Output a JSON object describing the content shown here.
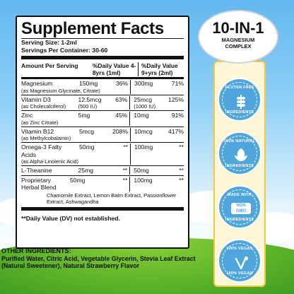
{
  "facts": {
    "title": "Supplement Facts",
    "serving_size": "Serving Size: 1-2ml",
    "servings_per_container": "Servings Per Container: 30-60",
    "headers": {
      "amount": "Amount Per Serving",
      "dv_kids": "%Daily Value 4-8yrs (1ml)",
      "dv_adult": "%Daily Value 9+yrs (2ml)"
    },
    "rows": [
      {
        "name": "Magnesium",
        "sub": "(as Magnesium Glycinate, Citrate)",
        "amt1": "150mg",
        "pct1": "36%",
        "amt2": "300mg",
        "pct2": "71%"
      },
      {
        "name": "Vitamin D3",
        "sub": "(as Cholecalciferol)",
        "amt1": "12.5mcg",
        "amt1_sub": "(500 IU)",
        "pct1": "63%",
        "amt2": "25mcg",
        "amt2_sub": "(1000 IU)",
        "pct2": "125%"
      },
      {
        "name": "Zinc",
        "sub": "(as Zinc Citrate)",
        "amt1": "5mg",
        "pct1": "45%",
        "amt2": "10mg",
        "pct2": "91%"
      },
      {
        "name": "Vitamin B12",
        "sub": "(as Methylcobalamin)",
        "amt1": "5mcg",
        "pct1": "208%",
        "amt2": "10mcg",
        "pct2": "417%"
      },
      {
        "name": "Omega-3 Fatty Acids",
        "sub": "(as Alpha-Linolenic Acid)",
        "amt1": "50mg",
        "pct1": "**",
        "amt2": "100mg",
        "pct2": "**"
      },
      {
        "name": "L-Theanine",
        "sub": "",
        "amt1": "25mg",
        "pct1": "**",
        "amt2": "50mg",
        "pct2": "**"
      },
      {
        "name": "Proprietary Herbal Blend",
        "sub": "",
        "amt1": "50mg",
        "pct1": "**",
        "amt2": "100mg",
        "pct2": "**"
      }
    ],
    "extracts": "Chamomile Extract, Lemon Balm Extract, Passionflower Extract, Ashwagandha",
    "dv_note": "**Daily Value (DV) not established."
  },
  "other": {
    "heading": "OTHER INGREDIENTS:",
    "text": "Purified Water, Citric Acid, Vegetable Glycerin, Stevia Leaf Extract (Natural Sweetener), Natural Strawberry Flavor"
  },
  "head_badge": {
    "big": "10-IN-1",
    "small_1": "MAGNESIUM",
    "small_2": "COMPLEX"
  },
  "badges": [
    {
      "top": "GLUTEN FREE",
      "bottom": "INGREDIENTS",
      "icon": "wheat-icon"
    },
    {
      "top": "100% NATURAL",
      "bottom": "INGREDIENTS",
      "icon": "leaf-icon"
    },
    {
      "top": "MADE WITH",
      "mid_1": "NON",
      "mid_2": "GMO",
      "bottom": "INGREDIENTS",
      "icon": "non-gmo-icon"
    },
    {
      "top": "100% VEGAN",
      "bottom": "100% VEGAN",
      "icon": "vegan-leaf-icon"
    }
  ],
  "colors": {
    "badge_blue": "#4ea6dc",
    "ribbon_gold": "#f4c742",
    "grass_green": "#5fb52a",
    "sky_blue": "#63b8f0"
  }
}
